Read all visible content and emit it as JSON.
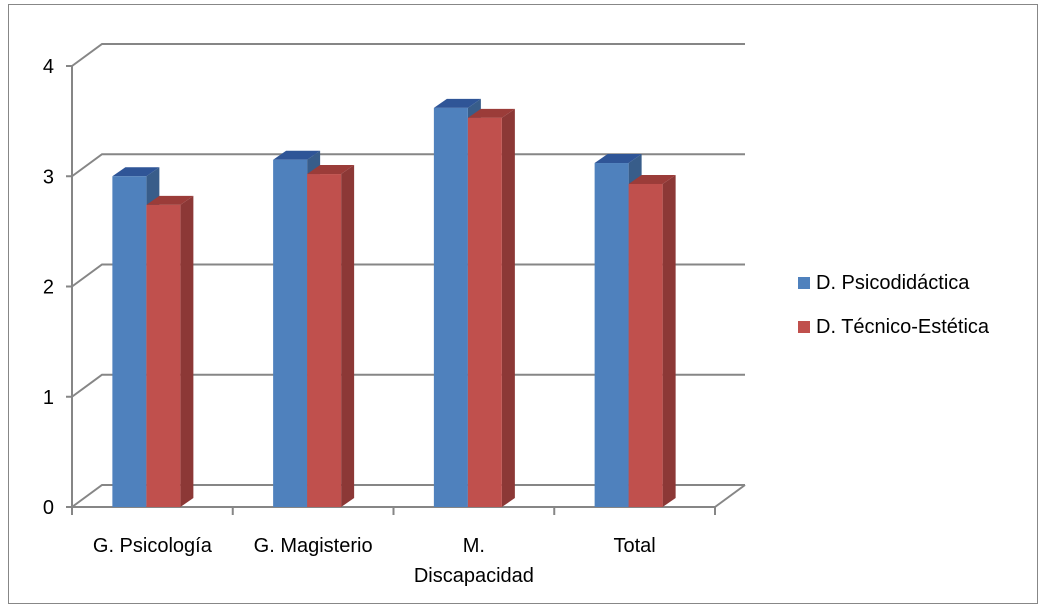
{
  "chart_data": {
    "type": "bar",
    "categories": [
      "G. Psicología",
      "G. Magisterio",
      "M. Discapacidad",
      "Total"
    ],
    "category_lines": [
      [
        "G. Psicología"
      ],
      [
        "G. Magisterio"
      ],
      [
        "M.",
        "Discapacidad"
      ],
      [
        "Total"
      ]
    ],
    "series": [
      {
        "name": "D. Psicodidáctica",
        "values": [
          3.0,
          3.15,
          3.62,
          3.12
        ],
        "color": "#4F81BD",
        "side_color": "#385D8A",
        "top_color": "#2F5597"
      },
      {
        "name": "D. Técnico-Estética",
        "values": [
          2.74,
          3.02,
          3.53,
          2.93
        ],
        "color": "#C0504D",
        "side_color": "#8C3836",
        "top_color": "#9B3C39"
      }
    ],
    "yticks": [
      "0",
      "1",
      "2",
      "3",
      "4"
    ],
    "ylim": [
      0,
      4
    ],
    "grid": true,
    "legend_position": "right",
    "title": "",
    "xlabel": "",
    "ylabel": ""
  }
}
